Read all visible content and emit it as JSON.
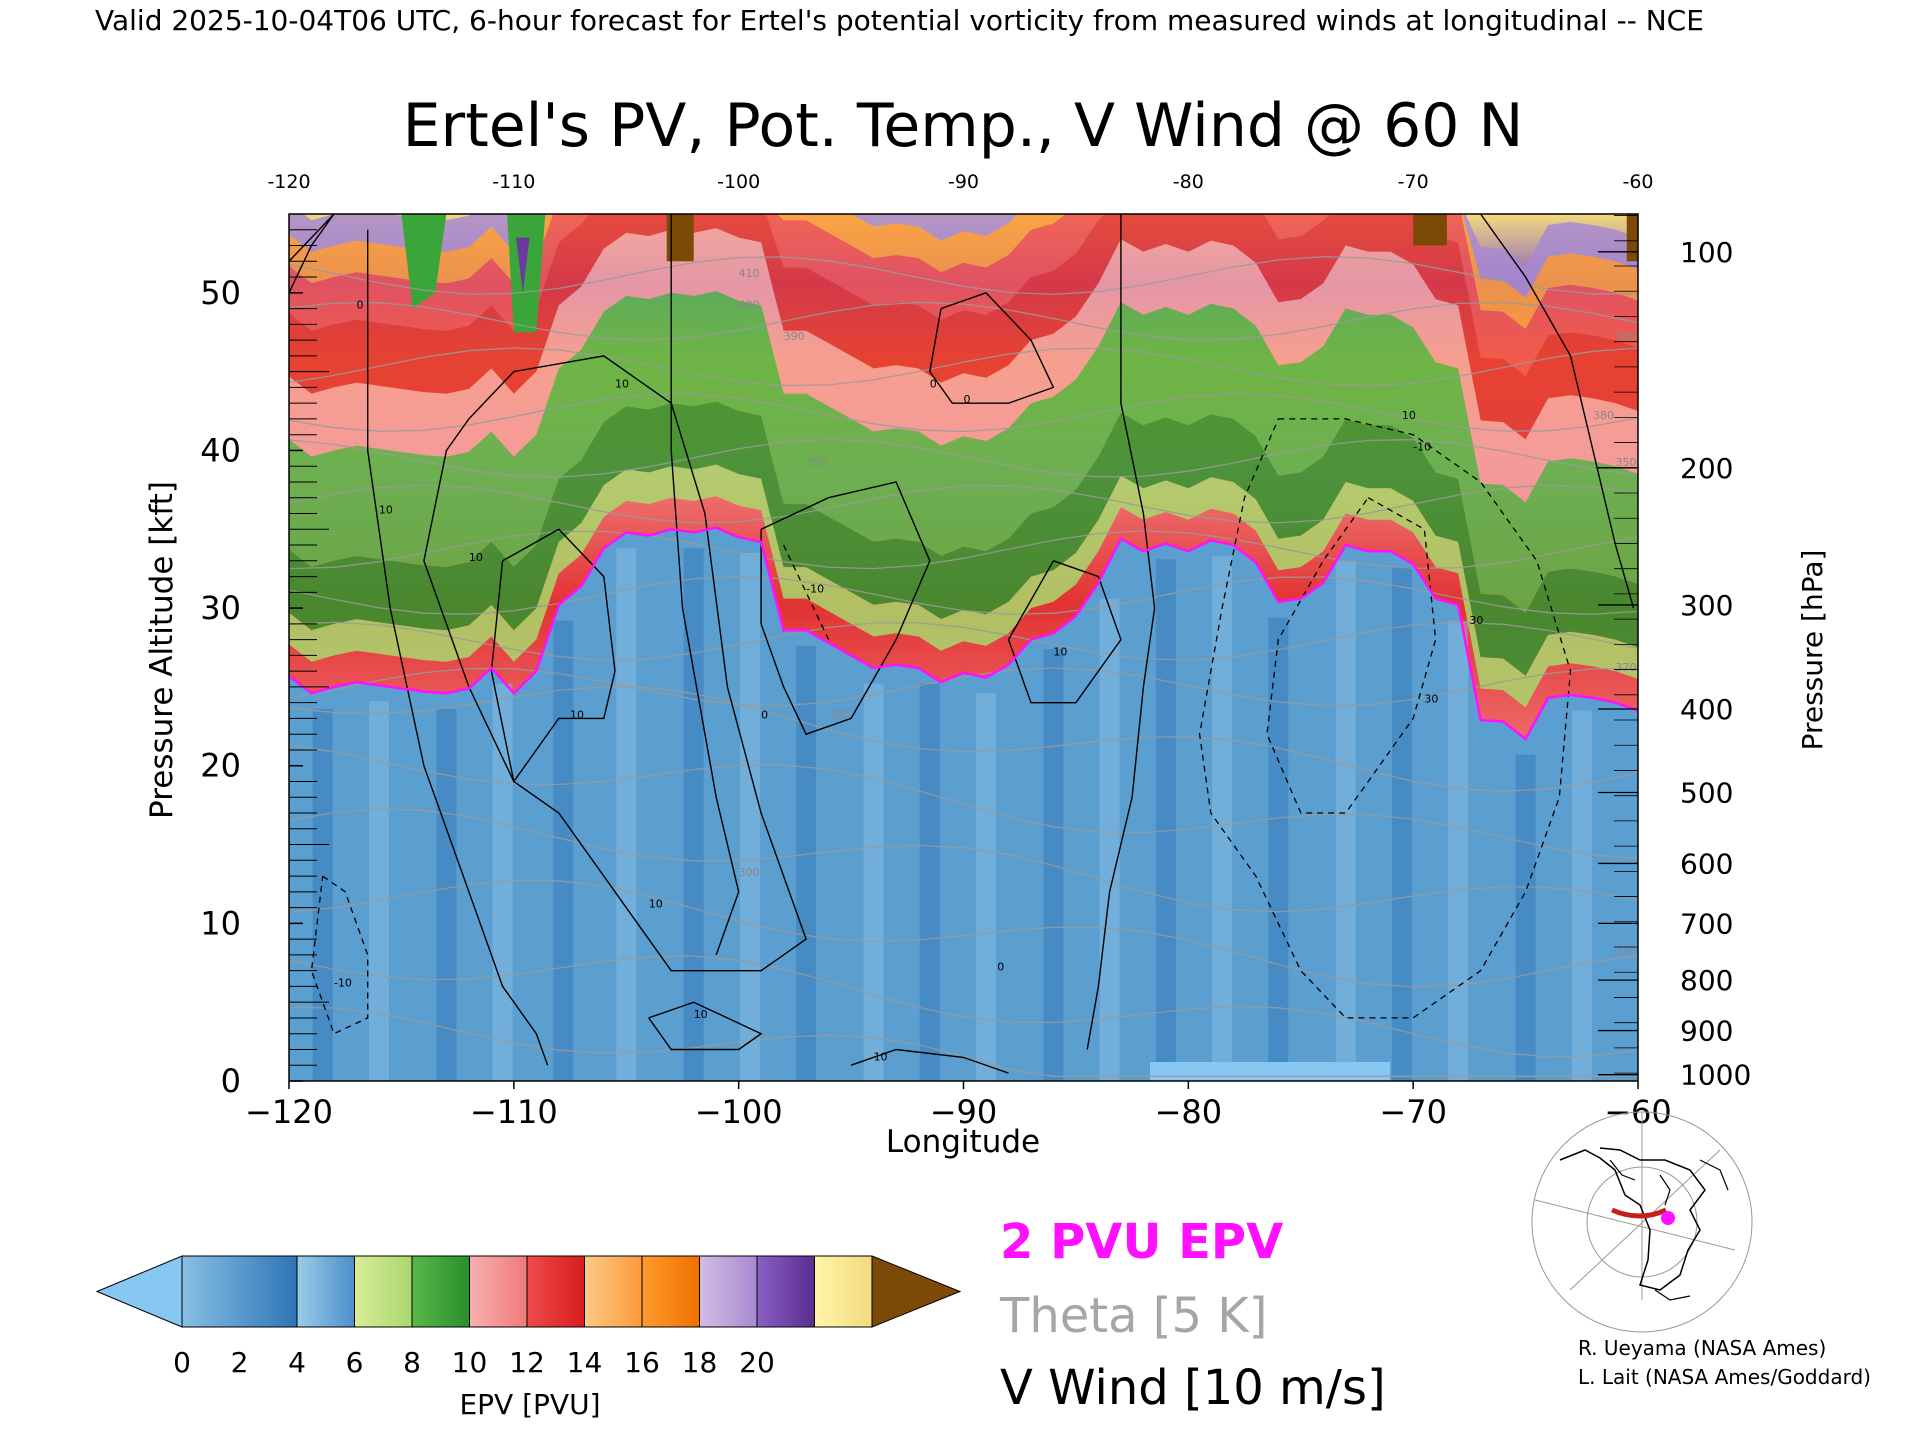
{
  "header": "Valid 2025-10-04T06 UTC, 6-hour forecast for Ertel's potential vorticity from measured winds at longitudinal -- NCE",
  "chart_data": {
    "type": "heatmap",
    "title": "Ertel's PV, Pot. Temp., V Wind @ 60 N",
    "xlabel": "Longitude",
    "ylabel_left": "Pressure Altitude [kft]",
    "ylabel_right": "Pressure [hPa]",
    "xlim": [
      -120,
      -60
    ],
    "ylim_kft": [
      0,
      55
    ],
    "x_ticks": [
      -120,
      -110,
      -100,
      -90,
      -80,
      -70,
      -60
    ],
    "x_tick_labels": [
      "−120",
      "−110",
      "−100",
      "−90",
      "−80",
      "−70",
      "−60"
    ],
    "top_tick_labels": [
      "-120",
      "-110",
      "-100",
      "-90",
      "-80",
      "-70",
      "-60"
    ],
    "y_ticks_kft": [
      0,
      10,
      20,
      30,
      40,
      50
    ],
    "right_ticks": [
      {
        "label": "100",
        "kft": 52.6
      },
      {
        "label": "200",
        "kft": 38.9
      },
      {
        "label": "300",
        "kft": 30.2
      },
      {
        "label": "400",
        "kft": 23.6
      },
      {
        "label": "500",
        "kft": 18.3
      },
      {
        "label": "600",
        "kft": 13.8
      },
      {
        "label": "700",
        "kft": 10.0
      },
      {
        "label": "800",
        "kft": 6.4
      },
      {
        "label": "900",
        "kft": 3.2
      },
      {
        "label": "1000",
        "kft": 0.4
      }
    ],
    "tropopause_2pvu_kft": [
      [
        -120,
        25.7
      ],
      [
        -119,
        24.6
      ],
      [
        -118,
        25.0
      ],
      [
        -117,
        25.3
      ],
      [
        -116,
        25.1
      ],
      [
        -115,
        24.9
      ],
      [
        -114,
        24.7
      ],
      [
        -113,
        24.6
      ],
      [
        -112,
        24.9
      ],
      [
        -111,
        26.2
      ],
      [
        -110,
        24.6
      ],
      [
        -109,
        26.0
      ],
      [
        -108,
        30.2
      ],
      [
        -107,
        31.4
      ],
      [
        -106,
        33.8
      ],
      [
        -105,
        34.8
      ],
      [
        -104,
        34.6
      ],
      [
        -103,
        35.0
      ],
      [
        -102,
        34.8
      ],
      [
        -101,
        35.1
      ],
      [
        -100,
        34.5
      ],
      [
        -99,
        34.2
      ],
      [
        -98,
        28.6
      ],
      [
        -97,
        28.6
      ],
      [
        -96,
        27.8
      ],
      [
        -95,
        27.0
      ],
      [
        -94,
        26.2
      ],
      [
        -93,
        26.4
      ],
      [
        -92,
        26.2
      ],
      [
        -91,
        25.3
      ],
      [
        -90,
        25.9
      ],
      [
        -89,
        25.6
      ],
      [
        -88,
        26.4
      ],
      [
        -87,
        28.0
      ],
      [
        -86,
        28.4
      ],
      [
        -85,
        29.5
      ],
      [
        -84,
        31.6
      ],
      [
        -83,
        34.4
      ],
      [
        -82,
        33.6
      ],
      [
        -81,
        34.1
      ],
      [
        -80,
        33.6
      ],
      [
        -79,
        34.3
      ],
      [
        -78,
        34.0
      ],
      [
        -77,
        32.9
      ],
      [
        -76,
        30.4
      ],
      [
        -75,
        30.6
      ],
      [
        -74,
        31.6
      ],
      [
        -73,
        34.0
      ],
      [
        -72,
        33.6
      ],
      [
        -71,
        33.6
      ],
      [
        -70,
        32.8
      ],
      [
        -69,
        30.6
      ],
      [
        -68,
        30.2
      ],
      [
        -67,
        22.9
      ],
      [
        -66,
        22.8
      ],
      [
        -65,
        21.7
      ],
      [
        -64,
        24.3
      ],
      [
        -63,
        24.5
      ],
      [
        -62,
        24.3
      ],
      [
        -61,
        24.0
      ],
      [
        -60,
        23.5
      ]
    ],
    "epv_bands_above_tropopause_pvu": [
      3,
      5,
      7,
      9,
      11,
      13,
      15,
      17,
      19
    ],
    "epv_band_edges_kft": [
      [
        2,
        4
      ],
      [
        4,
        8
      ],
      [
        8,
        15
      ],
      [
        15,
        19
      ],
      [
        19,
        23
      ],
      [
        23,
        26
      ],
      [
        26,
        28
      ],
      [
        28,
        30
      ]
    ],
    "theta_isentropes": {
      "levels_k": [
        260,
        270,
        280,
        290,
        300,
        310,
        320,
        330,
        340,
        350,
        360,
        370,
        380,
        390,
        400,
        410
      ],
      "interval_label": "Theta [5 K]"
    },
    "theta_contour_labels": [
      "300",
      "300",
      "350",
      "380",
      "390",
      "400",
      "410",
      "380",
      "350",
      "370",
      "330"
    ],
    "v_wind_contours": {
      "interval_m_s": 10,
      "labels": [
        "0",
        "0",
        "0",
        "0",
        "0",
        "10",
        "10",
        "10",
        "10",
        "10",
        "10",
        "10",
        "10",
        "30",
        "30",
        "-10",
        "-10",
        "-10",
        "10"
      ]
    },
    "colorbar": {
      "label": "EPV [PVU]",
      "ticks": [
        "0",
        "2",
        "4",
        "6",
        "8",
        "10",
        "12",
        "14",
        "16",
        "18",
        "20"
      ],
      "under_color": "#87c7f2",
      "over_color": "#7c4a06",
      "segments": [
        [
          "#88c0e4",
          "#2e74b6"
        ],
        [
          "#9ccde6",
          "#4a8fcb"
        ],
        [
          "#d8ec9a",
          "#a9d86c"
        ],
        [
          "#58b848",
          "#2a8e2c"
        ],
        [
          "#f8b0b0",
          "#f07a7a"
        ],
        [
          "#ee4c4c",
          "#d81c1c"
        ],
        [
          "#fdca86",
          "#fb9a3a"
        ],
        [
          "#ff9c2e",
          "#f07000"
        ],
        [
          "#d2bde4",
          "#a88ad0"
        ],
        [
          "#8a60c4",
          "#5b2d90"
        ],
        [
          "#fff6a8",
          "#f3d97e"
        ]
      ]
    },
    "legend": [
      {
        "text": "2 PVU EPV",
        "color": "#ff10ff"
      },
      {
        "text": "Theta [5 K]",
        "color": "#a6a6a6"
      },
      {
        "text": "V Wind [10 m/s]",
        "color": "#000000"
      }
    ]
  },
  "credits": [
    "R. Ueyama (NASA Ames)",
    "L. Lait (NASA Ames/Goddard)"
  ]
}
